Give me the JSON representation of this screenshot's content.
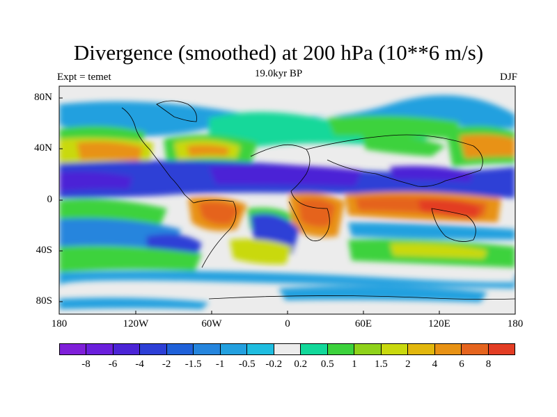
{
  "title": "Divergence (smoothed) at 200 hPa (10**6 m/s)",
  "left_label": "Expt = temet",
  "center_label": "19.0kyr BP",
  "right_label": "DJF",
  "y_ticks": [
    "80N",
    "40N",
    "0",
    "40S",
    "80S"
  ],
  "x_ticks": [
    "180",
    "120W",
    "60W",
    "0",
    "60E",
    "120E",
    "180"
  ],
  "colorbar": {
    "labels": [
      "-8",
      "-6",
      "-4",
      "-2",
      "-1.5",
      "-1",
      "-0.5",
      "-0.2",
      "0.2",
      "0.5",
      "1",
      "1.5",
      "2",
      "4",
      "6",
      "8"
    ],
    "colors": [
      "#7f1fd9",
      "#6a1fdc",
      "#4b24d6",
      "#2d3fd6",
      "#1f61d9",
      "#2585dd",
      "#23a0df",
      "#1fbde0",
      "#ececec",
      "#12d89a",
      "#3cd23c",
      "#8fd21a",
      "#c9d90e",
      "#e2b70d",
      "#e89214",
      "#e5641e",
      "#e33d24"
    ]
  },
  "map_region_colors": {
    "background": "#ececec",
    "neg_strong": "#2d3fd6",
    "neg_deep": "#4b24d6",
    "neg_mid": "#2585dd",
    "neg_light": "#23a0df",
    "pos_light": "#3cd23c",
    "pos_mid": "#c9d90e",
    "pos_warm": "#e89214",
    "pos_hot": "#e5641e",
    "pos_max": "#e33d24",
    "pos_cyan": "#12d89a"
  }
}
